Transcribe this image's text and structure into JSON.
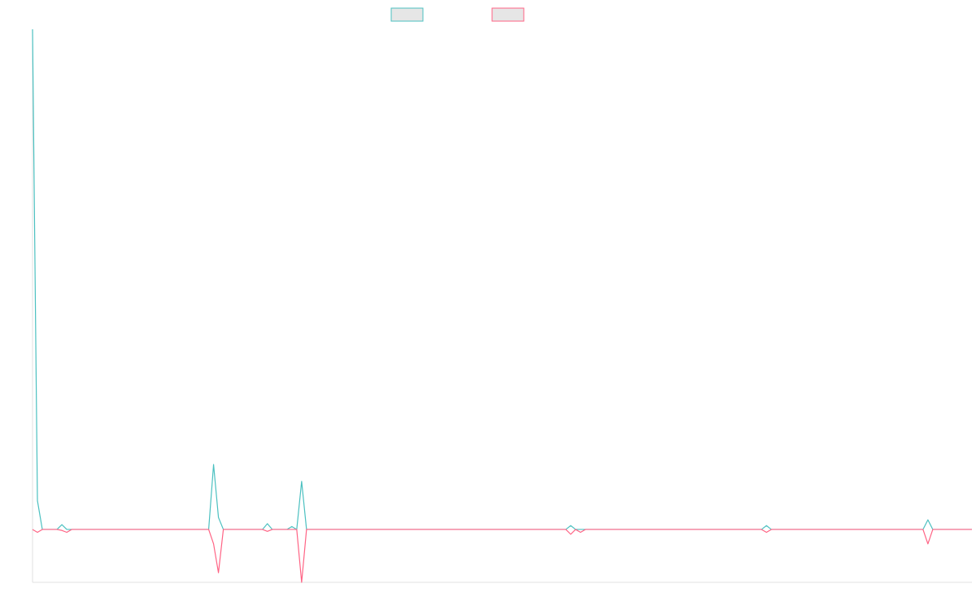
{
  "chart_data": {
    "type": "line",
    "title": "",
    "xlabel": "",
    "ylabel": "",
    "legend": {
      "placement": "top-center",
      "entries": 2
    },
    "grid": false,
    "xlim": [
      0,
      192
    ],
    "ylim": [
      -11,
      104
    ],
    "series": [
      {
        "color": "#4bc0c0",
        "points": [
          [
            0,
            104
          ],
          [
            1,
            6
          ],
          [
            2,
            0
          ],
          [
            3,
            0
          ],
          [
            4,
            0
          ],
          [
            5,
            0
          ],
          [
            6,
            1
          ],
          [
            7,
            0
          ],
          [
            36,
            0
          ],
          [
            37,
            13.5
          ],
          [
            38,
            2.5
          ],
          [
            39,
            0
          ],
          [
            47,
            0
          ],
          [
            48,
            1.2
          ],
          [
            49,
            0
          ],
          [
            52,
            0
          ],
          [
            53,
            0.6
          ],
          [
            54,
            0
          ],
          [
            55,
            10
          ],
          [
            56,
            0
          ],
          [
            109,
            0
          ],
          [
            110,
            0.8
          ],
          [
            111,
            0
          ],
          [
            149,
            0
          ],
          [
            150,
            0.8
          ],
          [
            151,
            0
          ],
          [
            182,
            0
          ],
          [
            183,
            2
          ],
          [
            184,
            0
          ],
          [
            192,
            0
          ]
        ]
      },
      {
        "color": "#ff6384",
        "points": [
          [
            0,
            0
          ],
          [
            1,
            -0.6
          ],
          [
            2,
            0
          ],
          [
            3,
            0
          ],
          [
            4,
            0
          ],
          [
            5,
            0
          ],
          [
            6,
            -0.2
          ],
          [
            7,
            -0.6
          ],
          [
            8,
            0
          ],
          [
            35,
            0
          ],
          [
            36,
            0
          ],
          [
            37,
            -3
          ],
          [
            38,
            -9
          ],
          [
            39,
            0
          ],
          [
            47,
            0
          ],
          [
            48,
            -0.4
          ],
          [
            49,
            0
          ],
          [
            54,
            0
          ],
          [
            55,
            -11
          ],
          [
            56,
            0
          ],
          [
            109,
            0
          ],
          [
            110,
            -1
          ],
          [
            111,
            0
          ],
          [
            112,
            -0.6
          ],
          [
            113,
            0
          ],
          [
            149,
            0
          ],
          [
            150,
            -0.6
          ],
          [
            151,
            0
          ],
          [
            182,
            0
          ],
          [
            183,
            -3
          ],
          [
            184,
            0
          ],
          [
            192,
            0
          ]
        ]
      }
    ]
  }
}
